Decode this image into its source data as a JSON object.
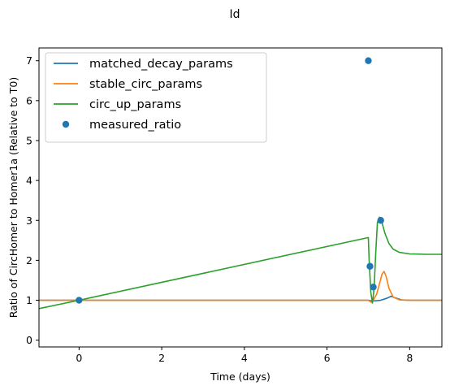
{
  "chart_data": {
    "type": "line",
    "title": "Id",
    "xlabel": "Time (days)",
    "ylabel": "Ratio of CircHomer to Homer1a (Relative to T0)",
    "xlim": [
      -0.97,
      8.78
    ],
    "ylim": [
      -0.17,
      7.32
    ],
    "xticks": [
      0,
      2,
      4,
      6,
      8
    ],
    "yticks": [
      0,
      1,
      2,
      3,
      4,
      5,
      6,
      7
    ],
    "grid": false,
    "legend_position": "upper-left",
    "series": [
      {
        "name": "matched_decay_params",
        "kind": "line",
        "color": "#1f77b4",
        "x": [
          -0.97,
          7.0,
          7.1,
          7.3,
          7.45,
          7.55,
          7.65,
          7.8,
          8.0,
          8.78
        ],
        "y": [
          1.0,
          1.0,
          0.98,
          1.0,
          1.05,
          1.1,
          1.06,
          1.01,
          1.0,
          1.0
        ]
      },
      {
        "name": "stable_circ_params",
        "kind": "line",
        "color": "#ff7f0e",
        "x": [
          -0.97,
          7.0,
          7.07,
          7.12,
          7.2,
          7.28,
          7.33,
          7.38,
          7.43,
          7.5,
          7.6,
          7.75,
          8.0,
          8.78
        ],
        "y": [
          1.0,
          1.0,
          0.95,
          1.0,
          1.15,
          1.45,
          1.65,
          1.72,
          1.6,
          1.3,
          1.08,
          1.01,
          1.0,
          1.0
        ]
      },
      {
        "name": "circ_up_params",
        "kind": "line",
        "color": "#2ca02c",
        "x": [
          -0.97,
          0,
          7.0,
          7.02,
          7.06,
          7.1,
          7.14,
          7.18,
          7.22,
          7.27,
          7.3,
          7.33,
          7.4,
          7.5,
          7.6,
          7.75,
          8.0,
          8.4,
          8.78
        ],
        "y": [
          0.79,
          1.0,
          2.57,
          2.0,
          1.2,
          0.93,
          1.3,
          2.2,
          2.95,
          3.08,
          3.0,
          2.95,
          2.68,
          2.42,
          2.28,
          2.2,
          2.16,
          2.15,
          2.15
        ]
      },
      {
        "name": "measured_ratio",
        "kind": "scatter",
        "color": "#1f77b4",
        "x": [
          0,
          7.0,
          7.04,
          7.12,
          7.3
        ],
        "y": [
          1.0,
          7.0,
          1.85,
          1.33,
          3.0
        ]
      }
    ]
  }
}
